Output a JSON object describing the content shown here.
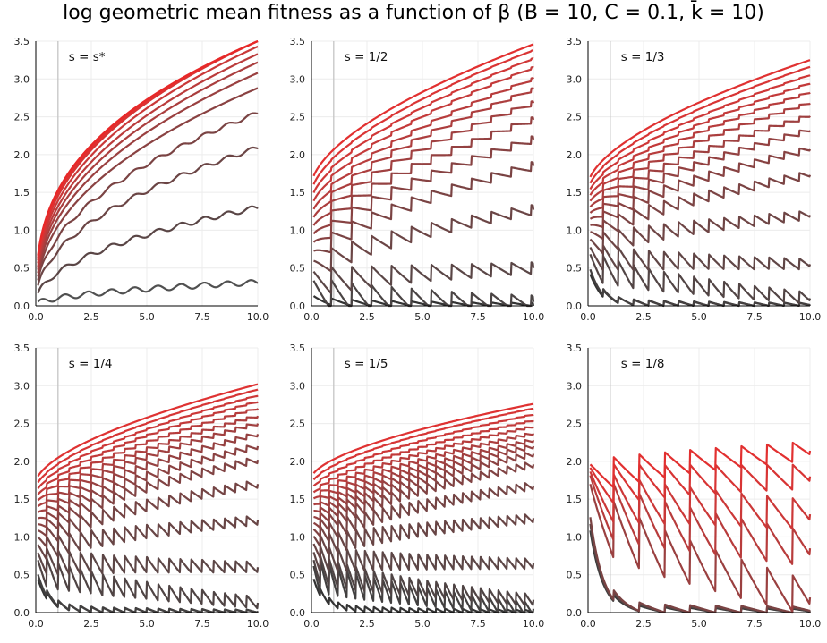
{
  "title": "log geometric mean fitness as a function of β (B = 10, C = 0.1, k̄ = 10)",
  "chart_data": [
    {
      "type": "line",
      "panel_label": "s = s*",
      "s": "star",
      "xlim": [
        0,
        10
      ],
      "ylim": [
        0,
        3.5
      ],
      "xticks": [
        "0.0",
        "2.5",
        "5.0",
        "7.5",
        "10.0"
      ],
      "yticks": [
        "0.0",
        "0.5",
        "1.0",
        "1.5",
        "2.0",
        "2.5",
        "3.0",
        "3.5"
      ],
      "vline_x": 1,
      "n_series": 12,
      "end_values": [
        0.31,
        1.3,
        2.09,
        2.55,
        2.88,
        3.08,
        3.22,
        3.33,
        3.43,
        3.5,
        3.5,
        3.5
      ],
      "line_colors": [
        "#505050",
        "#5a4646",
        "#6b4545",
        "#7a4343",
        "#8a4242",
        "#9a4040",
        "#aa3e3e",
        "#ba3b3b",
        "#c93838",
        "#d63434",
        "#e03030",
        "#e82828"
      ]
    },
    {
      "type": "line",
      "panel_label": "s = 1/2",
      "s": 0.5,
      "xlim": [
        0,
        10
      ],
      "ylim": [
        0,
        3.5
      ],
      "xticks": [
        "0.0",
        "2.5",
        "5.0",
        "7.5",
        "10.0"
      ],
      "yticks": [
        "0.0",
        "0.5",
        "1.0",
        "1.5",
        "2.0",
        "2.5",
        "3.0",
        "3.5"
      ],
      "vline_x": 1,
      "n_series": 14,
      "end_values": [
        0.0,
        0.05,
        0.5,
        1.27,
        1.85,
        2.2,
        2.46,
        2.68,
        2.86,
        3.0,
        3.15,
        3.27,
        3.38,
        3.46
      ],
      "line_colors": [
        "#333333",
        "#4a4444",
        "#5a4646",
        "#6b4545",
        "#7a4343",
        "#874242",
        "#944141",
        "#a04040",
        "#ac3e3e",
        "#b83c3c",
        "#c43a3a",
        "#d03737",
        "#da3434",
        "#e23030"
      ]
    },
    {
      "type": "line",
      "panel_label": "s = 1/3",
      "s": 0.333,
      "xlim": [
        0,
        10
      ],
      "ylim": [
        0,
        3.5
      ],
      "xticks": [
        "0.0",
        "2.5",
        "5.0",
        "7.5",
        "10.0"
      ],
      "yticks": [
        "0.0",
        "0.5",
        "1.0",
        "1.5",
        "2.0",
        "2.5",
        "3.0",
        "3.5"
      ],
      "vline_x": 1,
      "n_series": 15,
      "end_values": [
        0.0,
        0.02,
        0.1,
        0.55,
        1.2,
        1.73,
        2.07,
        2.32,
        2.51,
        2.68,
        2.82,
        2.94,
        3.05,
        3.16,
        3.25
      ],
      "line_colors": [
        "#333333",
        "#444040",
        "#524545",
        "#604646",
        "#6e4545",
        "#7b4444",
        "#874242",
        "#934141",
        "#9f4040",
        "#ab3e3e",
        "#b73c3c",
        "#c33a3a",
        "#ce3737",
        "#d83434",
        "#e03131"
      ]
    },
    {
      "type": "line",
      "panel_label": "s = 1/4",
      "s": 0.25,
      "xlim": [
        0,
        10
      ],
      "ylim": [
        0,
        3.5
      ],
      "xticks": [
        "0.0",
        "2.5",
        "5.0",
        "7.5",
        "10.0"
      ],
      "yticks": [
        "0.0",
        "0.5",
        "1.0",
        "1.5",
        "2.0",
        "2.5",
        "3.0",
        "3.5"
      ],
      "vline_x": 1,
      "n_series": 16,
      "end_values": [
        0.0,
        0.02,
        0.13,
        0.6,
        1.22,
        1.7,
        2.02,
        2.2,
        2.36,
        2.5,
        2.6,
        2.7,
        2.79,
        2.87,
        2.95,
        3.02
      ],
      "line_colors": [
        "#333333",
        "#424040",
        "#4f4444",
        "#5c4646",
        "#684545",
        "#744444",
        "#804343",
        "#8b4242",
        "#964141",
        "#a14040",
        "#ac3e3e",
        "#b73c3c",
        "#c23a3a",
        "#cc3838",
        "#d63535",
        "#df3232"
      ]
    },
    {
      "type": "line",
      "panel_label": "s = 1/5",
      "s": 0.2,
      "xlim": [
        0,
        10
      ],
      "ylim": [
        0,
        3.5
      ],
      "xticks": [
        "0.0",
        "2.5",
        "5.0",
        "7.5",
        "10.0"
      ],
      "yticks": [
        "0.0",
        "0.5",
        "1.0",
        "1.5",
        "2.0",
        "2.5",
        "3.0",
        "3.5"
      ],
      "vline_x": 1,
      "n_series": 16,
      "end_values": [
        0.0,
        0.05,
        0.17,
        0.65,
        1.25,
        1.68,
        1.96,
        2.1,
        2.2,
        2.28,
        2.37,
        2.46,
        2.54,
        2.62,
        2.7,
        2.76
      ],
      "line_colors": [
        "#333333",
        "#424040",
        "#4f4444",
        "#5c4646",
        "#684545",
        "#744444",
        "#804343",
        "#8b4242",
        "#964141",
        "#a14040",
        "#ac3e3e",
        "#b73c3c",
        "#c23a3a",
        "#cc3838",
        "#d63535",
        "#df3232"
      ]
    },
    {
      "type": "line",
      "panel_label": "s = 1/8",
      "s": 0.125,
      "xlim": [
        0,
        10
      ],
      "ylim": [
        0,
        3.5
      ],
      "xticks": [
        "0.0",
        "2.5",
        "5.0",
        "7.5",
        "10.0"
      ],
      "yticks": [
        "0.0",
        "0.5",
        "1.0",
        "1.5",
        "2.0",
        "2.5",
        "3.0",
        "3.5"
      ],
      "vline_x": 1,
      "n_series": 8,
      "end_values": [
        0.0,
        0.0,
        0.02,
        0.2,
        0.85,
        1.3,
        1.8,
        2.14
      ],
      "line_colors": [
        "#3a3a3a",
        "#5a4646",
        "#7a4343",
        "#9a4040",
        "#b83c3c",
        "#cc3838",
        "#d83434",
        "#e23030"
      ]
    }
  ]
}
